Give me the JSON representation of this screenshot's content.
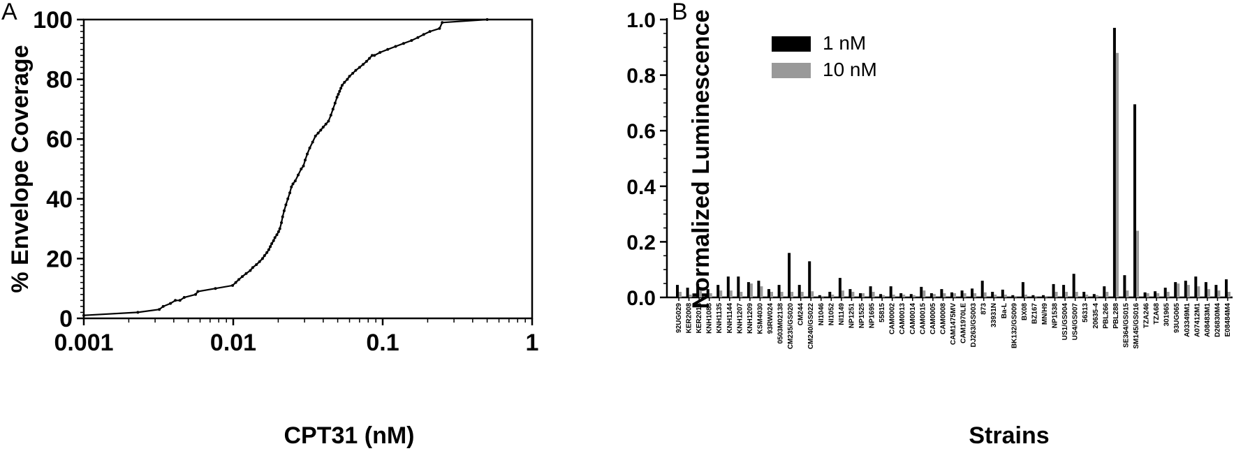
{
  "chart_data": [
    {
      "panel": "A",
      "type": "line",
      "title": "",
      "xlabel": "CPT31 (nM)",
      "ylabel": "% Envelope Coverage",
      "xscale": "log",
      "xlim": [
        0.001,
        1
      ],
      "ylim": [
        0,
        100
      ],
      "xticks": [
        "0.001",
        "0.01",
        "0.1",
        "1"
      ],
      "yticks": [
        "0",
        "20",
        "40",
        "60",
        "80",
        "100"
      ],
      "grid": false,
      "series": [
        {
          "x": [
            0.001,
            0.0023,
            0.0032,
            0.0034,
            0.0038,
            0.0041,
            0.0044,
            0.0047,
            0.0056,
            0.0058,
            0.0076,
            0.0099,
            0.0104,
            0.0109,
            0.0115,
            0.0122,
            0.013,
            0.0135,
            0.0143,
            0.015,
            0.0157,
            0.0162,
            0.0168,
            0.0173,
            0.0177,
            0.0181,
            0.0186,
            0.019,
            0.0196,
            0.0201,
            0.0205,
            0.021,
            0.0214,
            0.0219,
            0.0225,
            0.0232,
            0.0239,
            0.0245,
            0.0251,
            0.026,
            0.0272,
            0.0285,
            0.0295,
            0.0303,
            0.0313,
            0.0325,
            0.034,
            0.0355,
            0.037,
            0.0385,
            0.04,
            0.0417,
            0.0434,
            0.045,
            0.0465,
            0.048,
            0.0495,
            0.0505,
            0.0515,
            0.0525,
            0.0535,
            0.0555,
            0.058,
            0.06,
            0.063,
            0.066,
            0.07,
            0.074,
            0.078,
            0.0815,
            0.085,
            0.088,
            0.096,
            0.108,
            0.122,
            0.138,
            0.156,
            0.172,
            0.188,
            0.207,
            0.24,
            0.25,
            0.5
          ],
          "y": [
            1,
            2,
            3,
            4,
            5,
            6,
            6,
            7,
            8,
            9,
            10,
            11,
            12,
            13,
            14,
            15,
            16,
            17,
            18,
            19,
            20,
            21,
            22,
            23,
            24,
            25,
            26,
            27,
            28,
            29,
            30,
            32,
            34,
            36,
            38,
            40,
            42,
            44,
            45,
            46,
            48,
            50,
            51,
            53,
            55,
            57,
            59,
            61,
            62,
            63,
            64,
            65,
            66,
            68,
            70,
            72,
            74,
            75,
            76,
            77,
            78,
            79,
            80,
            81,
            82,
            83,
            84,
            85,
            86,
            87,
            88,
            88,
            89,
            90,
            91,
            92,
            93,
            94,
            95,
            96,
            97,
            99,
            100
          ]
        }
      ]
    },
    {
      "panel": "B",
      "type": "bar",
      "title": "",
      "xlabel": "Strains",
      "ylabel": "Normalized Luminescence",
      "ylim": [
        0,
        1.0
      ],
      "yticks": [
        "0.0",
        "0.2",
        "0.4",
        "0.6",
        "0.8",
        "1.0"
      ],
      "legend_position": "top-left",
      "grid": false,
      "categories": [
        "92UG029",
        "KER2008",
        "KER2018",
        "KNH1088",
        "KNH1135",
        "KNH1144",
        "KNH1207",
        "KNH1209",
        "KSM4030",
        "93RW024",
        "0503M02138",
        "CM235/GS020",
        "CM244",
        "CM240/GS022",
        "NI1046",
        "NI1052",
        "NI1149",
        "NP1251",
        "NP1525",
        "NP1695",
        "55815",
        "CAM0002",
        "CAM0013",
        "CAM0014",
        "CAM0015",
        "CAM0005",
        "CAM0008",
        "CAM1475MV",
        "CAM1970LE",
        "DJ263/GS003",
        "873",
        "33931N",
        "Ba-L",
        "BK132/GS009",
        "BX08",
        "BZ167",
        "MN/H9",
        "NP1538",
        "US1/GS004",
        "US4/GS007",
        "56313",
        "20635-4",
        "PBL266",
        "PBL288",
        "SE364/GS015",
        "SM145/GS016",
        "TZA246",
        "TZA68",
        "301965",
        "93UG065",
        "A03349M1",
        "A07412M1",
        "A08483M1",
        "D26830M4",
        "E08484M4"
      ],
      "series": [
        {
          "name": "1 nM",
          "color": "#000000",
          "values": [
            0.045,
            0.035,
            0.05,
            0.03,
            0.045,
            0.075,
            0.075,
            0.055,
            0.06,
            0.03,
            0.045,
            0.16,
            0.045,
            0.13,
            0.008,
            0.02,
            0.07,
            0.03,
            0.015,
            0.04,
            0.012,
            0.04,
            0.015,
            0.012,
            0.038,
            0.015,
            0.03,
            0.018,
            0.025,
            0.032,
            0.06,
            0.02,
            0.028,
            0.008,
            0.055,
            0.008,
            0.008,
            0.048,
            0.045,
            0.085,
            0.02,
            0.012,
            0.04,
            0.97,
            0.08,
            0.695,
            0.018,
            0.022,
            0.035,
            0.055,
            0.06,
            0.075,
            0.055,
            0.045,
            0.065
          ]
        },
        {
          "name": "10 nM",
          "color": "#999999",
          "values": [
            0.02,
            0.01,
            0.025,
            0.015,
            0.025,
            0.025,
            0.02,
            0.05,
            0.04,
            0.02,
            0.02,
            0.02,
            0.02,
            0.022,
            0.005,
            0.01,
            0.025,
            0.02,
            0.015,
            0.02,
            0.008,
            0.01,
            0.01,
            0.008,
            0.025,
            0.012,
            0.015,
            0.015,
            0.015,
            0.015,
            0.018,
            0.01,
            0.01,
            0.005,
            0.01,
            0.005,
            0.005,
            0.02,
            0.02,
            0.02,
            0.01,
            0.008,
            0.02,
            0.88,
            0.025,
            0.24,
            0.015,
            0.015,
            0.02,
            0.05,
            0.045,
            0.04,
            0.03,
            0.025,
            0.02
          ]
        }
      ]
    }
  ]
}
